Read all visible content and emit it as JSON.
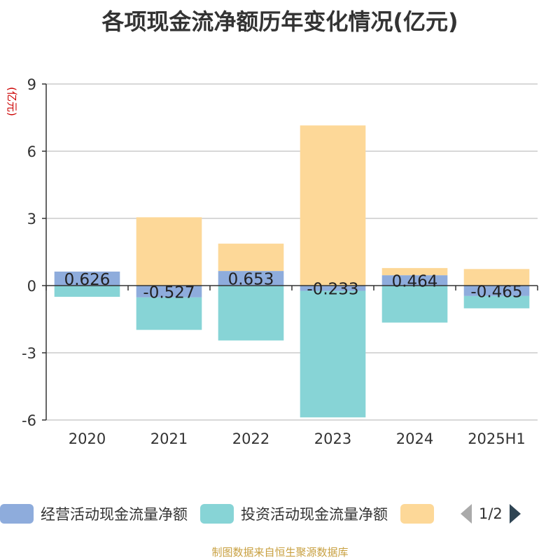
{
  "chart_data": {
    "type": "bar",
    "stacked": true,
    "title": "各项现金流净额历年变化情况(亿元)",
    "ylabel": "(亿元)",
    "categories": [
      "2020",
      "2021",
      "2022",
      "2023",
      "2024",
      "2025H1"
    ],
    "ylim": [
      -6,
      9
    ],
    "yticks": [
      -6,
      -3,
      0,
      3,
      6,
      9
    ],
    "grid": true,
    "series": [
      {
        "name": "经营活动现金流量净额",
        "color": "#8eacdc",
        "values": [
          0.626,
          -0.527,
          0.653,
          -0.233,
          0.464,
          -0.465
        ],
        "labels": [
          "0.626",
          "-0.527",
          "0.653",
          "-0.233",
          "0.464",
          "-0.465"
        ]
      },
      {
        "name": "投资活动现金流量净额",
        "color": "#87d4d6",
        "values": [
          -0.5,
          -1.45,
          -2.45,
          -5.65,
          -1.65,
          -0.55
        ]
      },
      {
        "name": "",
        "color": "#fdd898",
        "values": [
          0,
          3.05,
          1.22,
          7.15,
          0.32,
          0.74
        ]
      }
    ],
    "legend_position": "bottom",
    "legend_page": "1/2"
  },
  "source_note": "制图数据来自恒生聚源数据库",
  "colors": {
    "source_note": "#c8a040",
    "ylabel": "#cc0000"
  }
}
